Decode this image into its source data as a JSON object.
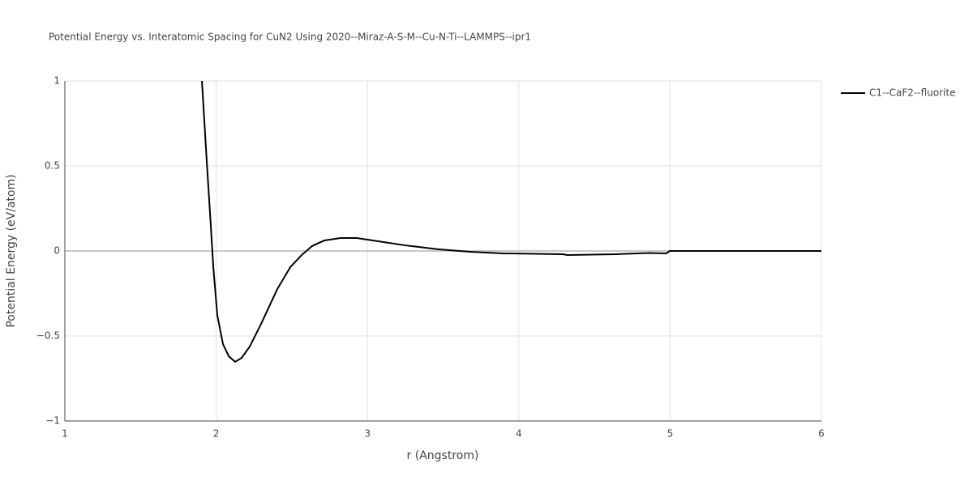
{
  "chart_data": {
    "type": "line",
    "title": "Potential Energy vs. Interatomic Spacing for CuN2 Using 2020--Miraz-A-S-M--Cu-N-Ti--LAMMPS--ipr1",
    "x_label": "r (Angstrom)",
    "y_label": "Potential Energy (eV/atom)",
    "x": [
      1.906,
      1.938,
      1.965,
      1.981,
      2.008,
      2.045,
      2.083,
      2.125,
      2.168,
      2.222,
      2.297,
      2.404,
      2.49,
      2.565,
      2.634,
      2.715,
      2.822,
      2.929,
      3.036,
      3.25,
      3.465,
      3.679,
      3.894,
      4.29,
      4.322,
      4.644,
      4.858,
      4.976,
      4.998,
      6
    ],
    "series": [
      {
        "name": "C1--CaF2--fluorite",
        "color": "#000000",
        "values": [
          1,
          0.524,
          0.143,
          -0.095,
          -0.381,
          -0.548,
          -0.619,
          -0.652,
          -0.629,
          -0.562,
          -0.429,
          -0.224,
          -0.095,
          -0.024,
          0.029,
          0.062,
          0.076,
          0.076,
          0.062,
          0.033,
          0.01,
          -0.005,
          -0.014,
          -0.019,
          -0.024,
          -0.019,
          -0.012,
          -0.014,
          0,
          0
        ]
      }
    ],
    "xlim": [
      1,
      6
    ],
    "xticks": [
      1,
      2,
      3,
      4,
      5,
      6
    ],
    "ylim": [
      -1,
      1
    ],
    "yticks": [
      {
        "value": -1,
        "label": "−1"
      },
      {
        "value": -0.5,
        "label": "−0.5"
      },
      0,
      0.5,
      1
    ],
    "grid": true,
    "legend": "top-right"
  }
}
